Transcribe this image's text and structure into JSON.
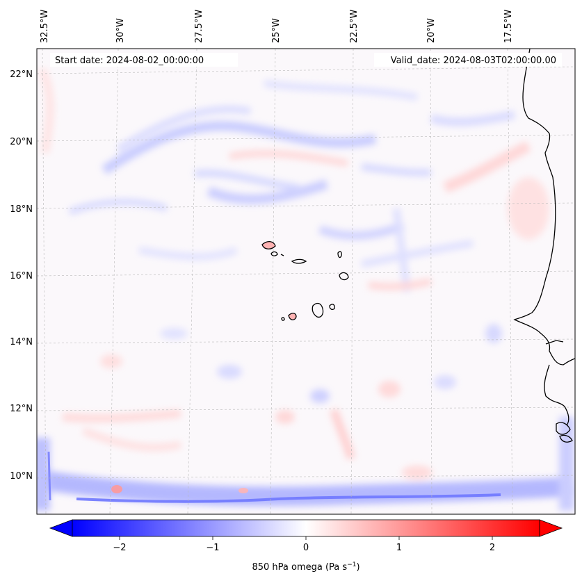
{
  "map": {
    "start_date": "Start date: 2024-08-02_00:00:00",
    "valid_date": "Valid_date: 2024-08-03T02:00:00.00",
    "field": "850 hPa omega",
    "units": "Pa s",
    "units_exponent": "−1",
    "lon_labels": [
      "32.5°W",
      "30°W",
      "27.5°W",
      "25°W",
      "22.5°W",
      "20°W",
      "17.5°W"
    ],
    "lat_labels": [
      "22°N",
      "20°N",
      "18°N",
      "16°N",
      "14°N",
      "12°N",
      "10°N"
    ]
  },
  "colorbar": {
    "ticks": [
      {
        "value": -2,
        "label": "−2"
      },
      {
        "value": -1,
        "label": "−1"
      },
      {
        "value": 0,
        "label": "0"
      },
      {
        "value": 1,
        "label": "1"
      },
      {
        "value": 2,
        "label": "2"
      }
    ],
    "vmin": -2.5,
    "vmax": 2.5,
    "colors": {
      "low": "#0000ff",
      "mid": "#ffffff",
      "high": "#ff0000"
    }
  },
  "colors": {
    "ascent_blue": "#c8ccff",
    "descent_red": "#ffd6d6",
    "coast": "#000000"
  }
}
